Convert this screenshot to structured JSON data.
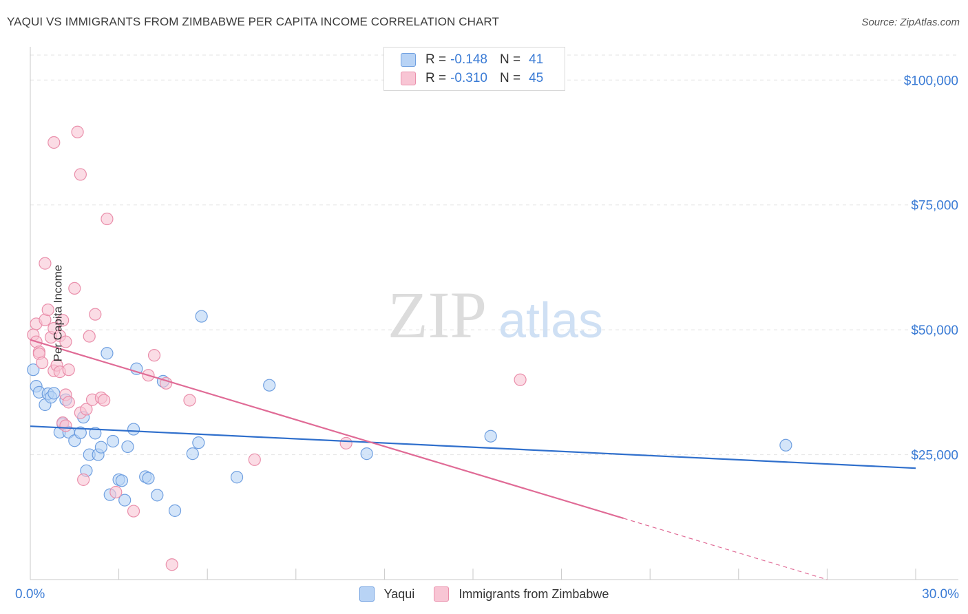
{
  "title": "YAQUI VS IMMIGRANTS FROM ZIMBABWE PER CAPITA INCOME CORRELATION CHART",
  "source": "Source: ZipAtlas.com",
  "watermark": {
    "zip": "ZIP",
    "atlas": "atlas"
  },
  "legend_top": [
    {
      "r_label": "R =",
      "r_value": "-0.148",
      "n_label": "N =",
      "n_value": "41"
    },
    {
      "r_label": "R =",
      "r_value": "-0.310",
      "n_label": "N =",
      "n_value": "45"
    }
  ],
  "legend_bottom": [
    "Yaqui",
    "Immigrants from Zimbabwe"
  ],
  "colors": {
    "yaqui_fill": "#b8d3f5",
    "yaqui_stroke": "#6f9fe0",
    "yaqui_line": "#2f6fcc",
    "zim_fill": "#f8c5d4",
    "zim_stroke": "#ea8fab",
    "zim_line": "#e06b96",
    "axis_label": "#3a7bd5",
    "grid": "#e3e3e3"
  },
  "chart_data": {
    "type": "scatter",
    "title": "YAQUI VS IMMIGRANTS FROM ZIMBABWE PER CAPITA INCOME CORRELATION CHART",
    "xlabel": "",
    "ylabel": "Per Capita Income",
    "xlim": [
      0,
      30
    ],
    "ylim": [
      0,
      105000
    ],
    "x_tick_labels": [
      "0.0%",
      "30.0%"
    ],
    "y_ticks": [
      25000,
      50000,
      75000,
      100000
    ],
    "y_tick_labels": [
      "$25,000",
      "$50,000",
      "$75,000",
      "$100,000"
    ],
    "series": [
      {
        "name": "Yaqui",
        "r": -0.148,
        "n": 41,
        "trend": {
          "x0": 0,
          "y0": 30700,
          "x1": 30,
          "y1": 22300,
          "solid_to": 30
        },
        "points": [
          [
            0.1,
            42000
          ],
          [
            0.2,
            38700
          ],
          [
            0.3,
            37500
          ],
          [
            0.5,
            35000
          ],
          [
            0.6,
            37200
          ],
          [
            0.7,
            36500
          ],
          [
            0.8,
            37300
          ],
          [
            1.0,
            29500
          ],
          [
            1.1,
            31200
          ],
          [
            1.2,
            36000
          ],
          [
            1.3,
            29500
          ],
          [
            1.5,
            27800
          ],
          [
            1.7,
            29400
          ],
          [
            1.8,
            32500
          ],
          [
            1.9,
            21800
          ],
          [
            2.0,
            25000
          ],
          [
            2.2,
            29300
          ],
          [
            2.3,
            25000
          ],
          [
            2.4,
            26500
          ],
          [
            2.6,
            45300
          ],
          [
            2.7,
            17000
          ],
          [
            2.8,
            27700
          ],
          [
            3.0,
            20000
          ],
          [
            3.1,
            19800
          ],
          [
            3.2,
            15900
          ],
          [
            3.3,
            26600
          ],
          [
            3.5,
            30100
          ],
          [
            3.6,
            42200
          ],
          [
            3.9,
            20600
          ],
          [
            4.0,
            20300
          ],
          [
            4.3,
            16900
          ],
          [
            4.5,
            39700
          ],
          [
            4.9,
            13800
          ],
          [
            5.5,
            25200
          ],
          [
            5.7,
            27400
          ],
          [
            5.8,
            52700
          ],
          [
            7.0,
            20500
          ],
          [
            8.1,
            38900
          ],
          [
            11.4,
            25200
          ],
          [
            15.6,
            28700
          ],
          [
            25.6,
            26900
          ]
        ]
      },
      {
        "name": "Immigrants from Zimbabwe",
        "r": -0.31,
        "n": 45,
        "trend": {
          "x0": 0,
          "y0": 48000,
          "x1": 27,
          "y1": 0,
          "solid_to": 20.1
        },
        "points": [
          [
            0.1,
            49000
          ],
          [
            0.2,
            51200
          ],
          [
            0.2,
            47600
          ],
          [
            0.3,
            45600
          ],
          [
            0.3,
            45200
          ],
          [
            0.4,
            43400
          ],
          [
            0.5,
            52000
          ],
          [
            0.5,
            63300
          ],
          [
            0.6,
            54000
          ],
          [
            0.7,
            48500
          ],
          [
            0.8,
            50300
          ],
          [
            0.8,
            41800
          ],
          [
            0.8,
            87500
          ],
          [
            0.9,
            42900
          ],
          [
            1.0,
            41600
          ],
          [
            1.0,
            48800
          ],
          [
            1.1,
            51900
          ],
          [
            1.2,
            47600
          ],
          [
            1.2,
            37000
          ],
          [
            1.1,
            31400
          ],
          [
            1.2,
            30800
          ],
          [
            1.3,
            35500
          ],
          [
            1.3,
            42000
          ],
          [
            1.5,
            58300
          ],
          [
            1.6,
            89600
          ],
          [
            1.7,
            81100
          ],
          [
            1.7,
            33400
          ],
          [
            1.8,
            20000
          ],
          [
            1.9,
            34100
          ],
          [
            2.0,
            48700
          ],
          [
            2.1,
            36000
          ],
          [
            2.2,
            53100
          ],
          [
            2.4,
            36400
          ],
          [
            2.5,
            35900
          ],
          [
            2.6,
            72200
          ],
          [
            2.9,
            17500
          ],
          [
            3.5,
            13700
          ],
          [
            4.0,
            40900
          ],
          [
            4.2,
            44900
          ],
          [
            4.6,
            39300
          ],
          [
            4.8,
            3000
          ],
          [
            5.4,
            35900
          ],
          [
            7.6,
            24000
          ],
          [
            10.7,
            27300
          ],
          [
            16.6,
            40000
          ]
        ]
      }
    ]
  }
}
